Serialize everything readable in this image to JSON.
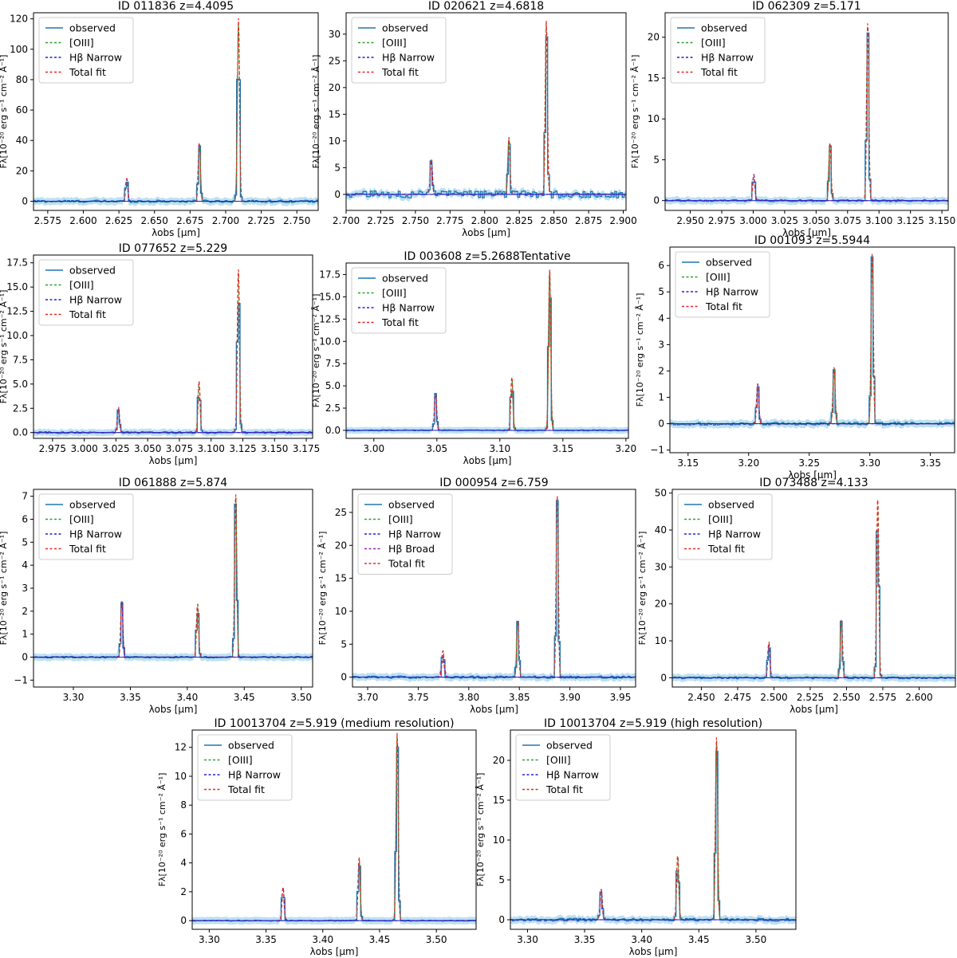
{
  "figure": {
    "ylabel": "Fλ[10⁻²⁰ erg s⁻¹ cm⁻² Å⁻¹]",
    "xlabel": "λobs [μm]",
    "colors": {
      "observed": "#1f77b4",
      "error_band": "#a6d6ee",
      "oiii": "#2ca02c",
      "hb_narrow": "#1f1fe0",
      "hb_broad": "#9a1fb0",
      "total": "#e8261f"
    }
  },
  "chart_data": [
    {
      "type": "line",
      "title": "ID 011836  z=4.4095",
      "xlim": [
        2.565,
        2.765
      ],
      "ylim": [
        -6,
        124
      ],
      "xticks": [
        "2.575",
        "2.600",
        "2.625",
        "2.650",
        "2.675",
        "2.700",
        "2.725",
        "2.750"
      ],
      "yticks": [
        "0",
        "20",
        "40",
        "60",
        "80",
        "100",
        "120"
      ],
      "peaks": [
        {
          "x": 2.6305,
          "y": 15
        },
        {
          "x": 2.6815,
          "y": 38
        },
        {
          "x": 2.709,
          "y": 118
        }
      ],
      "noise": 0.3,
      "legend": [
        "observed",
        "[OIII]",
        "Hβ Narrow",
        "Total fit"
      ]
    },
    {
      "type": "line",
      "title": "ID 020621  z=4.6818",
      "xlim": [
        2.7,
        2.902
      ],
      "ylim": [
        -3,
        34
      ],
      "xticks": [
        "2.700",
        "2.725",
        "2.750",
        "2.775",
        "2.800",
        "2.825",
        "2.850",
        "2.875",
        "2.900"
      ],
      "yticks": [
        "0",
        "5",
        "10",
        "15",
        "20",
        "25",
        "30"
      ],
      "peaks": [
        {
          "x": 2.7615,
          "y": 6.5
        },
        {
          "x": 2.8175,
          "y": 10.5
        },
        {
          "x": 2.8445,
          "y": 32
        }
      ],
      "noise": 0.9,
      "legend": [
        "observed",
        "[OIII]",
        "Hβ Narrow",
        "Total fit"
      ]
    },
    {
      "type": "line",
      "title": "ID 062309  z=5.171",
      "xlim": [
        2.93,
        3.155
      ],
      "ylim": [
        -1.2,
        23
      ],
      "xticks": [
        "2.950",
        "2.975",
        "3.000",
        "3.025",
        "3.050",
        "3.075",
        "3.100",
        "3.125",
        "3.150"
      ],
      "yticks": [
        "0",
        "5",
        "10",
        "15",
        "20"
      ],
      "peaks": [
        {
          "x": 3.0005,
          "y": 3.2
        },
        {
          "x": 3.061,
          "y": 7
        },
        {
          "x": 3.091,
          "y": 21.5
        }
      ],
      "noise": 0.25,
      "legend": [
        "observed",
        "[OIII]",
        "Hβ Narrow",
        "Total fit"
      ]
    },
    {
      "type": "line",
      "title": "ID 077652  z=5.229",
      "xlim": [
        2.96,
        3.18
      ],
      "ylim": [
        -0.6,
        18.3
      ],
      "xticks": [
        "2.975",
        "3.000",
        "3.025",
        "3.050",
        "3.075",
        "3.100",
        "3.125",
        "3.150",
        "3.175"
      ],
      "yticks": [
        "0.0",
        "2.5",
        "5.0",
        "7.5",
        "10.0",
        "12.5",
        "15.0",
        "17.5"
      ],
      "peaks": [
        {
          "x": 3.027,
          "y": 2.5
        },
        {
          "x": 3.0905,
          "y": 5.2
        },
        {
          "x": 3.1215,
          "y": 16.8
        }
      ],
      "noise": 0.25,
      "legend": [
        "observed",
        "[OIII]",
        "Hβ Narrow",
        "Total fit"
      ]
    },
    {
      "type": "line",
      "title": "ID 003608  z=5.2688Tentative",
      "xlim": [
        2.978,
        3.202
      ],
      "ylim": [
        -0.9,
        18.8
      ],
      "xticks": [
        "3.00",
        "3.05",
        "3.10",
        "3.15",
        "3.20"
      ],
      "yticks": [
        "0.0",
        "2.5",
        "5.0",
        "7.5",
        "10.0",
        "12.5",
        "15.0",
        "17.5"
      ],
      "peaks": [
        {
          "x": 3.049,
          "y": 4.1
        },
        {
          "x": 3.1095,
          "y": 5.9
        },
        {
          "x": 3.1395,
          "y": 18
        }
      ],
      "noise": 0.15,
      "legend": [
        "observed",
        "[OIII]",
        "Hβ Narrow",
        "Total fit"
      ]
    },
    {
      "type": "line",
      "title": "ID 001093  z=5.5944",
      "xlim": [
        3.135,
        3.37
      ],
      "ylim": [
        -1.1,
        6.7
      ],
      "xticks": [
        "3.15",
        "3.20",
        "3.25",
        "3.30",
        "3.35"
      ],
      "yticks": [
        "−1",
        "0",
        "1",
        "2",
        "3",
        "4",
        "5",
        "6"
      ],
      "peaks": [
        {
          "x": 3.2075,
          "y": 1.5
        },
        {
          "x": 3.2705,
          "y": 2.1
        },
        {
          "x": 3.302,
          "y": 6.4
        }
      ],
      "noise": 0.35,
      "legend": [
        "observed",
        "[OIII]",
        "Hβ Narrow",
        "Total fit"
      ]
    },
    {
      "type": "line",
      "title": "ID 061888  z=5.874",
      "xlim": [
        3.265,
        3.51
      ],
      "ylim": [
        -1.3,
        7.3
      ],
      "xticks": [
        "3.30",
        "3.35",
        "3.40",
        "3.45",
        "3.50"
      ],
      "yticks": [
        "−1",
        "0",
        "1",
        "2",
        "3",
        "4",
        "5",
        "6",
        "7"
      ],
      "peaks": [
        {
          "x": 3.3425,
          "y": 2.4
        },
        {
          "x": 3.409,
          "y": 2.3
        },
        {
          "x": 3.4425,
          "y": 7
        }
      ],
      "noise": 0.2,
      "legend": [
        "observed",
        "[OIII]",
        "Hβ Narrow",
        "Total fit"
      ]
    },
    {
      "type": "line",
      "title": "ID 000954  z=6.759",
      "xlim": [
        3.685,
        3.965
      ],
      "ylim": [
        -1.5,
        28.5
      ],
      "xticks": [
        "3.70",
        "3.75",
        "3.80",
        "3.85",
        "3.90",
        "3.95"
      ],
      "yticks": [
        "0",
        "5",
        "10",
        "15",
        "20",
        "25"
      ],
      "peaks": [
        {
          "x": 3.7745,
          "y": 4
        },
        {
          "x": 3.8485,
          "y": 8.5
        },
        {
          "x": 3.8875,
          "y": 27
        }
      ],
      "noise": 0.3,
      "legend": [
        "observed",
        "[OIII]",
        "Hβ Narrow",
        "Hβ Broad",
        "Total fit"
      ]
    },
    {
      "type": "line",
      "title": "ID 073488  z=4.133",
      "xlim": [
        2.43,
        2.625
      ],
      "ylim": [
        -2.5,
        51
      ],
      "xticks": [
        "2.450",
        "2.475",
        "2.500",
        "2.525",
        "2.550",
        "2.575",
        "2.600"
      ],
      "yticks": [
        "0",
        "10",
        "20",
        "30",
        "40",
        "50"
      ],
      "peaks": [
        {
          "x": 2.4965,
          "y": 9.5
        },
        {
          "x": 2.5465,
          "y": 15.5
        },
        {
          "x": 2.5715,
          "y": 48
        }
      ],
      "noise": 0.25,
      "legend": [
        "observed",
        "[OIII]",
        "Hβ Narrow",
        "Total fit"
      ]
    },
    {
      "type": "line",
      "title": "ID 10013704  z=5.919 (medium resolution)",
      "xlim": [
        3.285,
        3.535
      ],
      "ylim": [
        -0.6,
        13.2
      ],
      "xticks": [
        "3.30",
        "3.35",
        "3.40",
        "3.45",
        "3.50"
      ],
      "yticks": [
        "0",
        "2",
        "4",
        "6",
        "8",
        "10",
        "12"
      ],
      "peaks": [
        {
          "x": 3.365,
          "y": 2.3
        },
        {
          "x": 3.432,
          "y": 4.3
        },
        {
          "x": 3.4655,
          "y": 12.8
        }
      ],
      "noise": 0.12,
      "legend": [
        "observed",
        "[OIII]",
        "Hβ Narrow",
        "Total fit"
      ]
    },
    {
      "type": "line",
      "title": "ID 10013704  z=5.919 (high resolution)",
      "xlim": [
        3.285,
        3.535
      ],
      "ylim": [
        -1.2,
        23.8
      ],
      "xticks": [
        "3.30",
        "3.35",
        "3.40",
        "3.45",
        "3.50"
      ],
      "yticks": [
        "0",
        "5",
        "10",
        "15",
        "20"
      ],
      "peaks": [
        {
          "x": 3.3645,
          "y": 3.8
        },
        {
          "x": 3.4315,
          "y": 8
        },
        {
          "x": 3.4655,
          "y": 22.5
        }
      ],
      "noise": 0.35,
      "legend": [
        "observed",
        "[OIII]",
        "Hβ Narrow",
        "Total fit"
      ]
    }
  ]
}
